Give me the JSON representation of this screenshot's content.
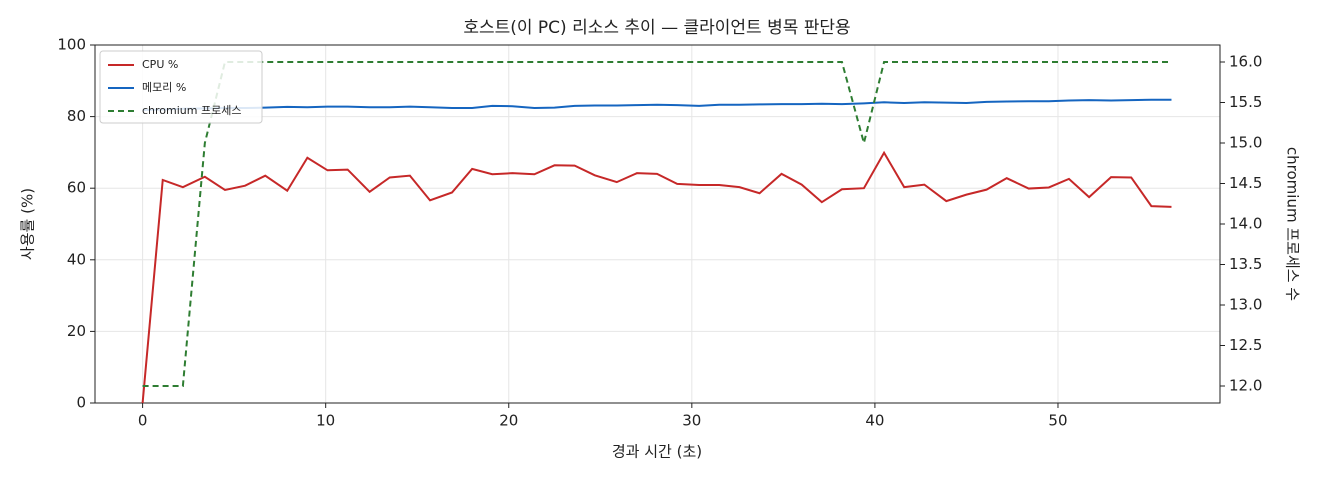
{
  "chart_data": {
    "type": "line",
    "title": "호스트(이 PC) 리소스 추이 — 클라이언트 병목 판단용",
    "x_label": "경과 시간 (초)",
    "y_label": "사용률 (%)",
    "y2_label": "chromium 프로세스 수",
    "x": [
      0,
      1.1,
      2.2,
      3.4,
      4.5,
      5.6,
      6.7,
      7.9,
      9.0,
      10.1,
      11.2,
      12.4,
      13.5,
      14.6,
      15.7,
      16.9,
      18.0,
      19.1,
      20.2,
      21.4,
      22.5,
      23.6,
      24.7,
      25.9,
      27.0,
      28.1,
      29.2,
      30.4,
      31.5,
      32.6,
      33.7,
      34.9,
      36.0,
      37.1,
      38.2,
      39.4,
      40.5,
      41.6,
      42.7,
      43.9,
      45.0,
      46.1,
      47.2,
      48.4,
      49.5,
      50.6,
      51.7,
      52.9,
      54.0,
      55.1,
      56.2
    ],
    "series": [
      {
        "name": "CPU %",
        "color": "#c62828",
        "dash": false,
        "values": [
          0,
          62.3,
          60.3,
          63.2,
          59.5,
          60.7,
          63.5,
          59.3,
          68.5,
          65,
          65.2,
          59,
          63,
          63.5,
          56.6,
          58.8,
          65.4,
          63.9,
          64.2,
          63.9,
          66.4,
          66.3,
          63.6,
          61.7,
          64.2,
          64,
          61.2,
          60.9,
          60.9,
          60.3,
          58.6,
          64,
          61,
          56.1,
          59.7,
          60,
          69.9,
          60.3,
          61,
          56.4,
          58.2,
          59.6,
          62.8,
          59.9,
          60.2,
          62.6,
          57.5,
          63.1,
          63,
          55,
          54.8
        ]
      },
      {
        "name": "메모리 %",
        "color": "#1565c0",
        "dash": false,
        "values": [
          81.8,
          82.0,
          82.2,
          82.3,
          82.4,
          82.4,
          82.5,
          82.7,
          82.6,
          82.8,
          82.8,
          82.6,
          82.6,
          82.8,
          82.6,
          82.4,
          82.4,
          83.0,
          82.9,
          82.4,
          82.5,
          83.0,
          83.1,
          83.1,
          83.2,
          83.3,
          83.2,
          83.0,
          83.3,
          83.3,
          83.4,
          83.5,
          83.5,
          83.6,
          83.5,
          83.7,
          84.0,
          83.8,
          84.0,
          83.9,
          83.8,
          84.1,
          84.2,
          84.3,
          84.3,
          84.5,
          84.6,
          84.5,
          84.6,
          84.7,
          84.7
        ]
      },
      {
        "name": "chromium 프로세스",
        "color": "#2e7d32",
        "dash": true,
        "axis": "y2",
        "values": [
          12,
          12,
          12,
          15,
          16,
          16,
          16,
          16,
          16,
          16,
          16,
          16,
          16,
          16,
          16,
          16,
          16,
          16,
          16,
          16,
          16,
          16,
          16,
          16,
          16,
          16,
          16,
          16,
          16,
          16,
          16,
          16,
          16,
          16,
          16,
          15,
          16,
          16,
          16,
          16,
          16,
          16,
          16,
          16,
          16,
          16,
          16,
          16,
          16,
          16,
          16
        ]
      }
    ],
    "xlim": [
      -2.6,
      58.85
    ],
    "xticks": [
      0,
      10,
      20,
      30,
      40,
      50
    ],
    "ylim": [
      0,
      100
    ],
    "yticks": [
      0,
      20,
      40,
      60,
      80,
      100
    ],
    "y2lim": [
      11.79,
      16.21
    ],
    "y2ticks": [
      {
        "value": 12,
        "label": "12.0"
      },
      12.5,
      {
        "value": 13,
        "label": "13.0"
      },
      13.5,
      {
        "value": 14,
        "label": "14.0"
      },
      14.5,
      {
        "value": 15,
        "label": "15.0"
      },
      15.5,
      {
        "value": 16,
        "label": "16.0"
      }
    ],
    "grid": true,
    "legend": "upper left"
  }
}
